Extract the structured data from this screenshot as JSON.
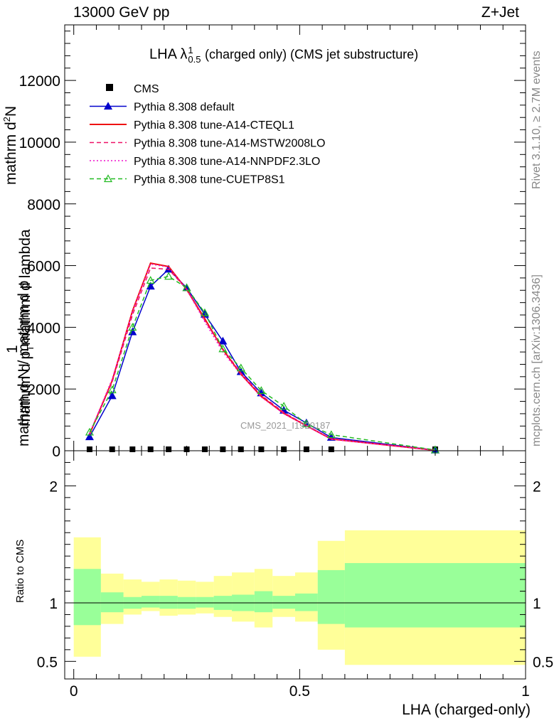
{
  "header": {
    "left": "13000 GeV pp",
    "right": "Z+Jet"
  },
  "side_text": {
    "rivet": "Rivet 3.1.10, ≥ 2.7M events",
    "mcplots": "mcplots.cern.ch [arXiv:1306.3436]"
  },
  "watermark": "CMS_2021_I1920187",
  "chart_data": [
    {
      "type": "line",
      "title_main": "LHA λ",
      "title_sup": "1",
      "title_sub": "0.5",
      "title_rest": "(charged only) (CMS jet substructure)",
      "ylabel_numer_top": "1",
      "ylabel_denom_top": "mathrm d N / mathrm d p",
      "ylabel_numer_main": "mathrm d",
      "ylabel_numer_sup": "2",
      "ylabel_numer_end": "N",
      "ylabel_denom_main": "mathrm d p",
      "ylabel_denom_sub": "T",
      "ylabel_denom_end": "mathrm d lambda",
      "ylim": [
        0,
        13800
      ],
      "yticks": [
        0,
        2000,
        4000,
        6000,
        8000,
        10000,
        12000
      ],
      "ytick_labels": [
        "0",
        "2000",
        "4000",
        "6000",
        "8000",
        "10000",
        "12000"
      ],
      "xlim": [
        -0.02,
        1.0
      ],
      "x": [
        0.035,
        0.085,
        0.13,
        0.17,
        0.21,
        0.25,
        0.29,
        0.33,
        0.37,
        0.415,
        0.465,
        0.515,
        0.57,
        0.8
      ],
      "cms_values": [
        0,
        0,
        0,
        0,
        0,
        0,
        0,
        0,
        0,
        0,
        0,
        0,
        0,
        0
      ],
      "series": [
        {
          "name": "CMS",
          "color": "#000000",
          "style": "marker-square",
          "values": [
            0,
            0,
            0,
            0,
            0,
            0,
            0,
            0,
            0,
            0,
            0,
            0,
            0,
            0
          ]
        },
        {
          "name": "Pythia 8.308 default",
          "color": "#0000cc",
          "style": "solid-triangle",
          "values": [
            450,
            1780,
            3850,
            5330,
            5880,
            5280,
            4420,
            3550,
            2560,
            1870,
            1310,
            900,
            430,
            20
          ]
        },
        {
          "name": "Pythia 8.308 tune-A14-CTEQL1",
          "color": "#ee1111",
          "style": "solid",
          "values": [
            530,
            2270,
            4530,
            6080,
            5970,
            5220,
            4280,
            3280,
            2480,
            1760,
            1210,
            810,
            380,
            15
          ]
        },
        {
          "name": "Pythia 8.308 tune-A14-MSTW2008LO",
          "color": "#ee1166",
          "style": "dashed",
          "values": [
            550,
            2220,
            4400,
            5920,
            5880,
            5230,
            4220,
            3300,
            2520,
            1800,
            1240,
            820,
            390,
            15
          ]
        },
        {
          "name": "Pythia 8.308 tune-A14-NNPDF2.3LO",
          "color": "#ee11cc",
          "style": "dotted",
          "values": [
            560,
            2320,
            4500,
            6050,
            5950,
            5230,
            4180,
            3200,
            2470,
            1740,
            1200,
            800,
            370,
            15
          ]
        },
        {
          "name": "Pythia 8.308 tune-CUETP8S1",
          "color": "#22bb22",
          "style": "dashed-open-triangle",
          "values": [
            600,
            1970,
            4000,
            5520,
            5650,
            5280,
            4470,
            3300,
            2680,
            1950,
            1440,
            870,
            520,
            25
          ]
        }
      ]
    },
    {
      "type": "area",
      "ylabel": "Ratio to CMS",
      "xlabel": "LHA (charged-only)",
      "xlim": [
        -0.02,
        1.0
      ],
      "xticks": [
        0,
        0.5,
        1
      ],
      "xtick_labels": [
        "0",
        "0.5",
        "1"
      ],
      "ylim": [
        0.35,
        2.3
      ],
      "yticks": [
        0.5,
        1,
        2
      ],
      "ytick_labels": [
        "0.5",
        "1",
        "2"
      ],
      "bins": [
        [
          0.0,
          0.06
        ],
        [
          0.06,
          0.11
        ],
        [
          0.11,
          0.15
        ],
        [
          0.15,
          0.19
        ],
        [
          0.19,
          0.23
        ],
        [
          0.23,
          0.27
        ],
        [
          0.27,
          0.31
        ],
        [
          0.31,
          0.35
        ],
        [
          0.35,
          0.4
        ],
        [
          0.4,
          0.44
        ],
        [
          0.44,
          0.49
        ],
        [
          0.49,
          0.54
        ],
        [
          0.54,
          0.6
        ],
        [
          0.6,
          1.0
        ]
      ],
      "outer_band": {
        "color": "#ffff99",
        "upper": [
          1.56,
          1.25,
          1.2,
          1.18,
          1.2,
          1.19,
          1.18,
          1.23,
          1.26,
          1.29,
          1.23,
          1.26,
          1.53,
          1.62
        ],
        "lower": [
          0.54,
          0.82,
          0.9,
          0.93,
          0.89,
          0.9,
          0.91,
          0.88,
          0.84,
          0.79,
          0.88,
          0.84,
          0.6,
          0.47
        ]
      },
      "inner_band": {
        "color": "#99ff99",
        "upper": [
          1.29,
          1.09,
          1.05,
          1.06,
          1.06,
          1.05,
          1.05,
          1.06,
          1.07,
          1.1,
          1.06,
          1.08,
          1.28,
          1.34
        ],
        "lower": [
          0.81,
          0.92,
          0.95,
          0.96,
          0.95,
          0.95,
          0.96,
          0.94,
          0.93,
          0.92,
          0.95,
          0.93,
          0.82,
          0.79
        ]
      },
      "reference": 1
    }
  ]
}
